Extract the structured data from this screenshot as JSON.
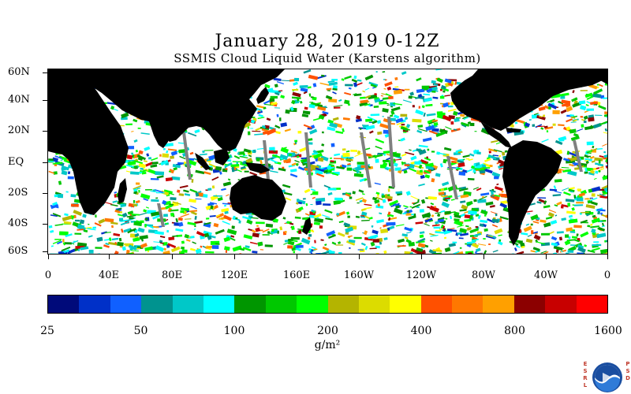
{
  "title": "January 28, 2019 0-12Z",
  "subtitle": "SSMIS Cloud Liquid Water (Karstens algorithm)",
  "map": {
    "lat_labels": [
      "60N",
      "40N",
      "20N",
      "EQ",
      "20S",
      "40S",
      "60S"
    ],
    "lon_labels": [
      "0",
      "40E",
      "80E",
      "120E",
      "160E",
      "160W",
      "120W",
      "80W",
      "40W",
      "0"
    ],
    "land_color": "#000000",
    "ocean_clear_color": "#ffffff",
    "swath_gap_color": "#808080"
  },
  "colorbar": {
    "colors": [
      "#000a7a",
      "#0030c8",
      "#1060ff",
      "#00938f",
      "#00c8c8",
      "#00ffff",
      "#009600",
      "#00c800",
      "#00ff00",
      "#b4b400",
      "#dcdc00",
      "#ffff00",
      "#ff5000",
      "#ff7800",
      "#ffa000",
      "#8c0000",
      "#c80000",
      "#ff0000"
    ],
    "tick_labels": [
      "25",
      "50",
      "100",
      "200",
      "400",
      "800",
      "1600"
    ],
    "units": "g/m²"
  },
  "logo": {
    "name": "NOAA",
    "left_letters": [
      "E",
      "S",
      "R",
      "L"
    ],
    "right_letters": [
      "P",
      "S",
      "D"
    ]
  }
}
